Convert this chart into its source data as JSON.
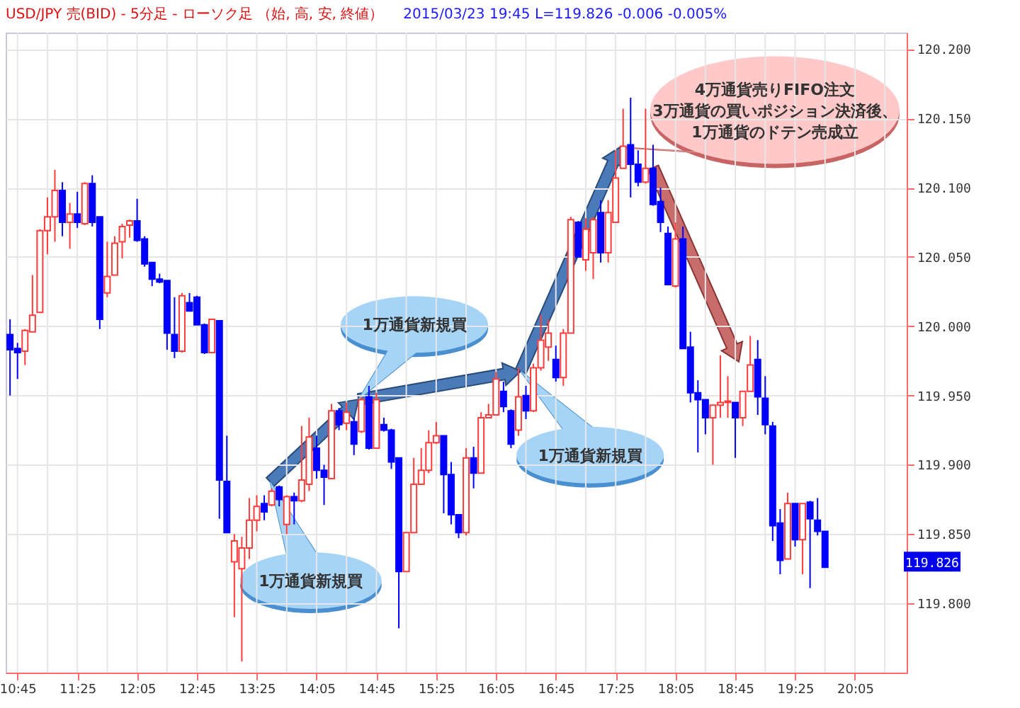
{
  "chart_data": {
    "type": "candlestick",
    "title": "USD/JPY 売(BID) - 5分足 - ローソク足 （始, 高, 安, 終値）",
    "subtitle": "2015/03/23 19:45  L=119.826  -0.006  -0.005%",
    "x": [
      10.6667,
      10.75,
      10.8333,
      10.9167,
      11,
      11.0833,
      11.1667,
      11.25,
      11.3333,
      11.4167,
      11.5,
      11.5833,
      11.6667,
      11.75,
      11.8333,
      11.9167,
      12,
      12.0833,
      12.1667,
      12.25,
      12.3333,
      12.4167,
      12.5,
      12.5833,
      12.6667,
      12.75,
      12.8333,
      12.9167,
      13,
      13.0833,
      13.1667,
      13.25,
      13.3333,
      13.4167,
      13.5,
      13.5833,
      13.6667,
      13.75,
      13.8333,
      13.9167,
      14,
      14.0833,
      14.1667,
      14.25,
      14.3333,
      14.4167,
      14.5,
      14.5833,
      14.6667,
      14.75,
      14.8333,
      14.9167,
      15,
      15.0833,
      15.1667,
      15.25,
      15.3333,
      15.4167,
      15.5,
      15.5833,
      15.6667,
      15.75,
      15.8333,
      15.9167,
      16,
      16.0833,
      16.1667,
      16.25,
      16.3333,
      16.4167,
      16.5,
      16.5833,
      16.6667,
      16.75,
      16.8333,
      16.9167,
      17,
      17.0833,
      17.1667,
      17.25,
      17.3333,
      17.4167,
      17.5,
      17.5833,
      17.6667,
      17.75,
      17.8333,
      17.9167,
      18,
      18.0833,
      18.1667,
      18.25,
      18.3333,
      18.4167,
      18.5,
      18.5833,
      18.6667,
      18.75,
      18.8333,
      18.9167,
      19,
      19.0833,
      19.1667,
      19.25,
      19.3333,
      19.4167,
      19.5,
      19.5833,
      19.6667,
      19.75
    ],
    "ohlc": [
      [
        119.994,
        120.005,
        119.95,
        119.983
      ],
      [
        119.984,
        119.988,
        119.962,
        119.981
      ],
      [
        119.982,
        119.998,
        119.972,
        119.997
      ],
      [
        119.996,
        120.037,
        119.996,
        120.008
      ],
      [
        120.01,
        120.07,
        120.01,
        120.069
      ],
      [
        120.069,
        120.093,
        120.052,
        120.079
      ],
      [
        120.079,
        120.113,
        120.061,
        120.098
      ],
      [
        120.098,
        120.104,
        120.065,
        120.075
      ],
      [
        120.075,
        120.089,
        120.056,
        120.081
      ],
      [
        120.081,
        120.097,
        120.071,
        120.075
      ],
      [
        120.074,
        120.104,
        120.073,
        120.103
      ],
      [
        120.103,
        120.109,
        120.072,
        120.075
      ],
      [
        120.079,
        120.079,
        119.998,
        120.005
      ],
      [
        120.024,
        120.061,
        120.021,
        120.036
      ],
      [
        120.037,
        120.065,
        120.037,
        120.06
      ],
      [
        120.061,
        120.074,
        120.049,
        120.072
      ],
      [
        120.073,
        120.077,
        120.064,
        120.076
      ],
      [
        120.076,
        120.092,
        120.061,
        120.062
      ],
      [
        120.063,
        120.065,
        120.043,
        120.045
      ],
      [
        120.046,
        120.046,
        120.029,
        120.034
      ],
      [
        120.034,
        120.038,
        120.031,
        120.032
      ],
      [
        120.033,
        120.033,
        119.983,
        119.995
      ],
      [
        119.994,
        120.021,
        119.977,
        119.982
      ],
      [
        119.982,
        120.024,
        119.981,
        120.022
      ],
      [
        120.017,
        120.024,
        120.011,
        120.011
      ],
      [
        120.021,
        120.022,
        120.001,
        120.001
      ],
      [
        120.001,
        120.002,
        119.98,
        119.981
      ],
      [
        119.981,
        120.005,
        119.981,
        120.005
      ],
      [
        120.004,
        120.004,
        119.861,
        119.889
      ],
      [
        119.888,
        119.921,
        119.851,
        119.851
      ],
      [
        119.83,
        119.85,
        119.79,
        119.845
      ],
      [
        119.825,
        119.848,
        119.758,
        119.84
      ],
      [
        119.84,
        119.876,
        119.832,
        119.86
      ],
      [
        119.86,
        119.878,
        119.852,
        119.87
      ],
      [
        119.872,
        119.878,
        119.86,
        119.866
      ],
      [
        119.871,
        119.883,
        119.87,
        119.881
      ],
      [
        119.884,
        119.885,
        119.87,
        119.875
      ],
      [
        119.857,
        119.878,
        119.85,
        119.877
      ],
      [
        119.877,
        119.88,
        119.857,
        119.874
      ],
      [
        119.874,
        119.928,
        119.873,
        119.889
      ],
      [
        119.886,
        119.934,
        119.881,
        119.92
      ],
      [
        119.912,
        119.921,
        119.89,
        119.896
      ],
      [
        119.896,
        119.9,
        119.871,
        119.891
      ],
      [
        119.89,
        119.944,
        119.89,
        119.939
      ],
      [
        119.939,
        119.941,
        119.925,
        119.929
      ],
      [
        119.93,
        119.945,
        119.925,
        119.938
      ],
      [
        119.931,
        119.934,
        119.907,
        119.915
      ],
      [
        119.924,
        119.949,
        119.923,
        119.947
      ],
      [
        119.949,
        119.957,
        119.911,
        119.912
      ],
      [
        119.912,
        119.952,
        119.912,
        119.947
      ],
      [
        119.929,
        119.934,
        119.924,
        119.925
      ],
      [
        119.925,
        119.926,
        119.897,
        119.902
      ],
      [
        119.905,
        119.905,
        119.782,
        119.823
      ],
      [
        119.823,
        119.851,
        119.823,
        119.851
      ],
      [
        119.851,
        119.905,
        119.851,
        119.886
      ],
      [
        119.886,
        119.912,
        119.886,
        119.896
      ],
      [
        119.896,
        119.925,
        119.894,
        119.916
      ],
      [
        119.916,
        119.931,
        119.915,
        119.921
      ],
      [
        119.921,
        119.921,
        119.865,
        119.893
      ],
      [
        119.893,
        119.902,
        119.857,
        119.864
      ],
      [
        119.864,
        119.864,
        119.847,
        119.851
      ],
      [
        119.851,
        119.912,
        119.849,
        119.905
      ],
      [
        119.905,
        119.913,
        119.883,
        119.894
      ],
      [
        119.894,
        119.938,
        119.894,
        119.934
      ],
      [
        119.934,
        119.944,
        119.934,
        119.936
      ],
      [
        119.936,
        119.967,
        119.936,
        119.962
      ],
      [
        119.953,
        119.96,
        119.938,
        119.942
      ],
      [
        119.939,
        119.94,
        119.912,
        119.915
      ],
      [
        119.925,
        119.97,
        119.921,
        119.949
      ],
      [
        119.95,
        119.957,
        119.933,
        119.939
      ],
      [
        119.939,
        119.973,
        119.938,
        119.97
      ],
      [
        119.97,
        120.008,
        119.968,
        119.99
      ],
      [
        119.985,
        120.005,
        119.975,
        119.995
      ],
      [
        119.976,
        119.986,
        119.96,
        119.963
      ],
      [
        119.963,
        119.998,
        119.957,
        119.995
      ],
      [
        119.995,
        120.079,
        119.995,
        120.077
      ],
      [
        120.075,
        120.076,
        120.05,
        120.05
      ],
      [
        120.048,
        120.078,
        120.04,
        120.07
      ],
      [
        120.053,
        120.079,
        120.034,
        120.077
      ],
      [
        120.082,
        120.091,
        120.046,
        120.053
      ],
      [
        120.053,
        120.091,
        120.046,
        120.082
      ],
      [
        120.075,
        120.127,
        120.075,
        120.107
      ],
      [
        120.114,
        120.157,
        120.114,
        120.13
      ],
      [
        120.131,
        120.165,
        120.093,
        120.117
      ],
      [
        120.117,
        120.127,
        120.101,
        120.104
      ],
      [
        120.104,
        120.157,
        120.103,
        120.114
      ],
      [
        120.114,
        120.131,
        120.087,
        120.088
      ],
      [
        120.09,
        120.1,
        120.068,
        120.075
      ],
      [
        120.067,
        120.072,
        120.03,
        120.03
      ],
      [
        120.029,
        120.075,
        120.028,
        120.063
      ],
      [
        120.063,
        120.072,
        119.984,
        119.984
      ],
      [
        119.985,
        119.996,
        119.945,
        119.952
      ],
      [
        119.952,
        119.961,
        119.909,
        119.947
      ],
      [
        119.947,
        119.947,
        119.922,
        119.934
      ],
      [
        119.934,
        119.943,
        119.9,
        119.943
      ],
      [
        119.943,
        119.979,
        119.934,
        119.945
      ],
      [
        119.945,
        119.964,
        119.934,
        119.946
      ],
      [
        119.945,
        119.945,
        119.905,
        119.934
      ],
      [
        119.934,
        119.953,
        119.928,
        119.953
      ],
      [
        119.953,
        119.993,
        119.953,
        119.972
      ],
      [
        119.976,
        119.99,
        119.936,
        119.949
      ],
      [
        119.948,
        119.964,
        119.922,
        119.929
      ],
      [
        119.928,
        119.931,
        119.845,
        119.856
      ],
      [
        119.858,
        119.868,
        119.821,
        119.831
      ],
      [
        119.832,
        119.88,
        119.832,
        119.872
      ],
      [
        119.872,
        119.872,
        119.841,
        119.846
      ],
      [
        119.846,
        119.872,
        119.821,
        119.872
      ],
      [
        119.873,
        119.874,
        119.811,
        119.861
      ],
      [
        119.86,
        119.876,
        119.849,
        119.852
      ],
      [
        119.852,
        119.852,
        119.826,
        119.826
      ]
    ],
    "colors": [
      "#0000ff",
      "#0000ff",
      "#ff3b3b",
      "#ff3b3b",
      "#ff3b3b",
      "#ff3b3b",
      "#ff3b3b",
      "#0000ff",
      "#ff3b3b",
      "#0000ff",
      "#ff3b3b",
      "#0000ff",
      "#0000ff",
      "#ff3b3b",
      "#ff3b3b",
      "#ff3b3b",
      "#ff3b3b",
      "#0000ff",
      "#0000ff",
      "#0000ff",
      "#0000ff",
      "#0000ff",
      "#0000ff",
      "#ff3b3b",
      "#0000ff",
      "#0000ff",
      "#0000ff",
      "#ff3b3b",
      "#0000ff",
      "#0000ff",
      "#ff3b3b",
      "#ff3b3b",
      "#ff3b3b",
      "#ff3b3b",
      "#0000ff",
      "#ff3b3b",
      "#0000ff",
      "#ff3b3b",
      "#0000ff",
      "#ff3b3b",
      "#ff3b3b",
      "#0000ff",
      "#0000ff",
      "#ff3b3b",
      "#0000ff",
      "#ff3b3b",
      "#0000ff",
      "#ff3b3b",
      "#0000ff",
      "#ff3b3b",
      "#0000ff",
      "#0000ff",
      "#0000ff",
      "#ff3b3b",
      "#ff3b3b",
      "#ff3b3b",
      "#ff3b3b",
      "#ff3b3b",
      "#0000ff",
      "#0000ff",
      "#0000ff",
      "#ff3b3b",
      "#0000ff",
      "#ff3b3b",
      "#ff3b3b",
      "#ff3b3b",
      "#0000ff",
      "#0000ff",
      "#ff3b3b",
      "#0000ff",
      "#ff3b3b",
      "#ff3b3b",
      "#ff3b3b",
      "#0000ff",
      "#ff3b3b",
      "#ff3b3b",
      "#0000ff",
      "#ff3b3b",
      "#ff3b3b",
      "#0000ff",
      "#ff3b3b",
      "#ff3b3b",
      "#ff3b3b",
      "#0000ff",
      "#0000ff",
      "#ff3b3b",
      "#0000ff",
      "#0000ff",
      "#0000ff",
      "#ff3b3b",
      "#0000ff",
      "#0000ff",
      "#0000ff",
      "#0000ff",
      "#ff3b3b",
      "#ff3b3b",
      "#ff3b3b",
      "#0000ff",
      "#ff3b3b",
      "#ff3b3b",
      "#0000ff",
      "#0000ff",
      "#0000ff",
      "#0000ff",
      "#ff3b3b",
      "#0000ff",
      "#ff3b3b",
      "#0000ff",
      "#0000ff",
      "#0000ff"
    ],
    "xlim": [
      10.618,
      20.66
    ],
    "xticks": [
      {
        "value": 10.75,
        "label": "10:45"
      },
      {
        "value": 11.0833,
        "label": null
      },
      {
        "value": 11.4167,
        "label": "11:25"
      },
      {
        "value": 11.75,
        "label": null
      },
      {
        "value": 12.0833,
        "label": "12:05"
      },
      {
        "value": 12.4167,
        "label": null
      },
      {
        "value": 12.75,
        "label": "12:45"
      },
      {
        "value": 13.0833,
        "label": null
      },
      {
        "value": 13.4167,
        "label": "13:25"
      },
      {
        "value": 13.75,
        "label": null
      },
      {
        "value": 14.0833,
        "label": "14:05"
      },
      {
        "value": 14.4167,
        "label": null
      },
      {
        "value": 14.75,
        "label": "14:45"
      },
      {
        "value": 15.0833,
        "label": null
      },
      {
        "value": 15.4167,
        "label": "15:25"
      },
      {
        "value": 15.75,
        "label": null
      },
      {
        "value": 16.0833,
        "label": "16:05"
      },
      {
        "value": 16.4167,
        "label": null
      },
      {
        "value": 16.75,
        "label": "16:45"
      },
      {
        "value": 17.0833,
        "label": null
      },
      {
        "value": 17.4167,
        "label": "17:25"
      },
      {
        "value": 17.75,
        "label": null
      },
      {
        "value": 18.0833,
        "label": "18:05"
      },
      {
        "value": 18.4167,
        "label": null
      },
      {
        "value": 18.75,
        "label": "18:45"
      },
      {
        "value": 19.0833,
        "label": null
      },
      {
        "value": 19.4167,
        "label": "19:25"
      },
      {
        "value": 19.75,
        "label": null
      },
      {
        "value": 20.0833,
        "label": "20:05"
      },
      {
        "value": 20.4167,
        "label": null
      }
    ],
    "ylim": [
      119.75,
      120.212
    ],
    "yticks": [
      {
        "value": 119.8,
        "label": "119.800"
      },
      {
        "value": 119.85,
        "label": "119.850"
      },
      {
        "value": 119.9,
        "label": "119.900"
      },
      {
        "value": 119.95,
        "label": "119.950"
      },
      {
        "value": 120,
        "label": "120.000"
      },
      {
        "value": 120.05,
        "label": "120.050"
      },
      {
        "value": 120.1,
        "label": "120.100"
      },
      {
        "value": 120.15,
        "label": "120.150"
      },
      {
        "value": 120.2,
        "label": "120.200"
      }
    ],
    "grid": true,
    "annotations": [
      "1万通貨新規買",
      "1万通貨新規買",
      "1万通貨新規買",
      "4万通貨売りFIFO注文\n3万通貨の買いポジション決済後、\n1万通貨のドテン売成立",
      "119.826"
    ]
  }
}
